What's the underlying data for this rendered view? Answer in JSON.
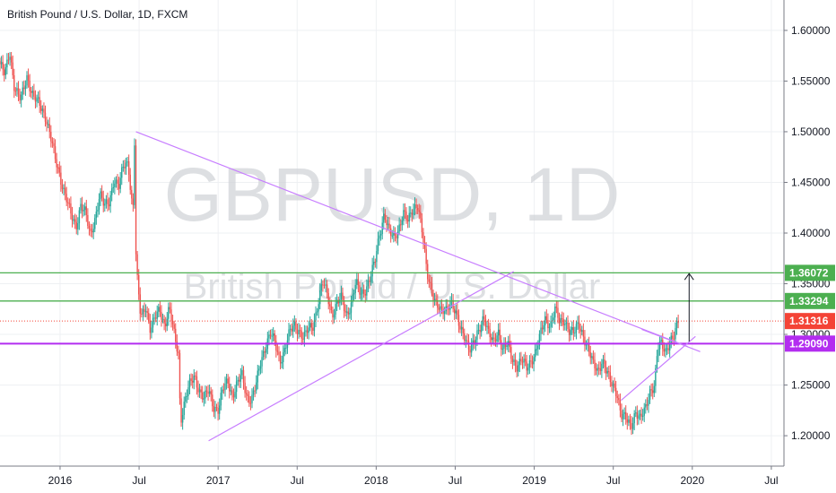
{
  "chart_data": {
    "type": "candlestick",
    "title": "British Pound / U.S. Dollar, 1D, FXCM",
    "watermark": {
      "symbol": "GBPUSD, 1D",
      "name": "British Pound / U.S. Dollar"
    },
    "x_ticks": [
      "2016",
      "Jul",
      "2017",
      "Jul",
      "2018",
      "Jul",
      "2019",
      "Jul",
      "2020",
      "Jul"
    ],
    "y_ticks": [
      "1.60000",
      "1.55000",
      "1.50000",
      "1.45000",
      "1.40000",
      "1.35000",
      "1.30000",
      "1.25000",
      "1.20000"
    ],
    "ylim": [
      1.17,
      1.63
    ],
    "xlim": [
      2015.62,
      2020.58
    ],
    "colors": {
      "up": "#26a69a",
      "down": "#ef5350",
      "trendline": "#c77dff",
      "level_green": "#4caf50",
      "level_purple": "#b32df0",
      "current": "#f44336"
    },
    "price_series": [
      [
        2015.62,
        1.57
      ],
      [
        2015.66,
        1.555
      ],
      [
        2015.69,
        1.58
      ],
      [
        2015.72,
        1.545
      ],
      [
        2015.76,
        1.53
      ],
      [
        2015.8,
        1.555
      ],
      [
        2015.84,
        1.535
      ],
      [
        2015.88,
        1.525
      ],
      [
        2015.92,
        1.515
      ],
      [
        2015.95,
        1.495
      ],
      [
        2015.98,
        1.47
      ],
      [
        2016.02,
        1.45
      ],
      [
        2016.05,
        1.435
      ],
      [
        2016.08,
        1.415
      ],
      [
        2016.11,
        1.405
      ],
      [
        2016.14,
        1.43
      ],
      [
        2016.17,
        1.42
      ],
      [
        2016.2,
        1.395
      ],
      [
        2016.23,
        1.415
      ],
      [
        2016.26,
        1.44
      ],
      [
        2016.29,
        1.425
      ],
      [
        2016.32,
        1.43
      ],
      [
        2016.35,
        1.455
      ],
      [
        2016.38,
        1.445
      ],
      [
        2016.41,
        1.465
      ],
      [
        2016.44,
        1.47
      ],
      [
        2016.47,
        1.42
      ],
      [
        2016.48,
        1.49
      ],
      [
        2016.49,
        1.365
      ],
      [
        2016.52,
        1.315
      ],
      [
        2016.55,
        1.33
      ],
      [
        2016.58,
        1.305
      ],
      [
        2016.61,
        1.315
      ],
      [
        2016.64,
        1.325
      ],
      [
        2016.67,
        1.31
      ],
      [
        2016.7,
        1.325
      ],
      [
        2016.73,
        1.3
      ],
      [
        2016.76,
        1.28
      ],
      [
        2016.77,
        1.215
      ],
      [
        2016.8,
        1.235
      ],
      [
        2016.83,
        1.25
      ],
      [
        2016.86,
        1.26
      ],
      [
        2016.89,
        1.245
      ],
      [
        2016.92,
        1.235
      ],
      [
        2016.95,
        1.245
      ],
      [
        2016.98,
        1.23
      ],
      [
        2017.01,
        1.225
      ],
      [
        2017.04,
        1.245
      ],
      [
        2017.07,
        1.255
      ],
      [
        2017.1,
        1.24
      ],
      [
        2017.13,
        1.25
      ],
      [
        2017.16,
        1.26
      ],
      [
        2017.19,
        1.24
      ],
      [
        2017.22,
        1.235
      ],
      [
        2017.25,
        1.25
      ],
      [
        2017.28,
        1.275
      ],
      [
        2017.31,
        1.29
      ],
      [
        2017.34,
        1.3
      ],
      [
        2017.37,
        1.29
      ],
      [
        2017.4,
        1.275
      ],
      [
        2017.43,
        1.285
      ],
      [
        2017.46,
        1.3
      ],
      [
        2017.49,
        1.31
      ],
      [
        2017.52,
        1.305
      ],
      [
        2017.55,
        1.295
      ],
      [
        2017.58,
        1.305
      ],
      [
        2017.61,
        1.31
      ],
      [
        2017.64,
        1.33
      ],
      [
        2017.67,
        1.35
      ],
      [
        2017.7,
        1.34
      ],
      [
        2017.73,
        1.32
      ],
      [
        2017.76,
        1.33
      ],
      [
        2017.79,
        1.335
      ],
      [
        2017.82,
        1.32
      ],
      [
        2017.85,
        1.33
      ],
      [
        2017.88,
        1.35
      ],
      [
        2017.91,
        1.34
      ],
      [
        2017.94,
        1.345
      ],
      [
        2017.97,
        1.355
      ],
      [
        2018.0,
        1.37
      ],
      [
        2018.03,
        1.4
      ],
      [
        2018.06,
        1.42
      ],
      [
        2018.09,
        1.4
      ],
      [
        2018.12,
        1.395
      ],
      [
        2018.15,
        1.405
      ],
      [
        2018.18,
        1.42
      ],
      [
        2018.21,
        1.41
      ],
      [
        2018.24,
        1.425
      ],
      [
        2018.27,
        1.43
      ],
      [
        2018.3,
        1.4
      ],
      [
        2018.33,
        1.36
      ],
      [
        2018.36,
        1.345
      ],
      [
        2018.39,
        1.33
      ],
      [
        2018.42,
        1.32
      ],
      [
        2018.45,
        1.325
      ],
      [
        2018.48,
        1.335
      ],
      [
        2018.51,
        1.32
      ],
      [
        2018.54,
        1.305
      ],
      [
        2018.57,
        1.3
      ],
      [
        2018.6,
        1.285
      ],
      [
        2018.63,
        1.29
      ],
      [
        2018.66,
        1.305
      ],
      [
        2018.69,
        1.32
      ],
      [
        2018.72,
        1.3
      ],
      [
        2018.75,
        1.29
      ],
      [
        2018.78,
        1.305
      ],
      [
        2018.81,
        1.285
      ],
      [
        2018.84,
        1.29
      ],
      [
        2018.87,
        1.275
      ],
      [
        2018.9,
        1.27
      ],
      [
        2018.93,
        1.275
      ],
      [
        2018.96,
        1.265
      ],
      [
        2018.99,
        1.275
      ],
      [
        2019.02,
        1.285
      ],
      [
        2019.05,
        1.3
      ],
      [
        2019.08,
        1.315
      ],
      [
        2019.11,
        1.31
      ],
      [
        2019.14,
        1.325
      ],
      [
        2019.17,
        1.31
      ],
      [
        2019.2,
        1.315
      ],
      [
        2019.23,
        1.305
      ],
      [
        2019.26,
        1.3
      ],
      [
        2019.29,
        1.31
      ],
      [
        2019.32,
        1.3
      ],
      [
        2019.35,
        1.285
      ],
      [
        2019.38,
        1.27
      ],
      [
        2019.41,
        1.265
      ],
      [
        2019.44,
        1.275
      ],
      [
        2019.47,
        1.26
      ],
      [
        2019.5,
        1.25
      ],
      [
        2019.53,
        1.245
      ],
      [
        2019.56,
        1.22
      ],
      [
        2019.59,
        1.215
      ],
      [
        2019.62,
        1.21
      ],
      [
        2019.65,
        1.225
      ],
      [
        2019.68,
        1.215
      ],
      [
        2019.71,
        1.225
      ],
      [
        2019.74,
        1.245
      ],
      [
        2019.77,
        1.25
      ],
      [
        2019.79,
        1.285
      ],
      [
        2019.81,
        1.29
      ],
      [
        2019.84,
        1.285
      ],
      [
        2019.87,
        1.295
      ],
      [
        2019.89,
        1.295
      ],
      [
        2019.92,
        1.312
      ]
    ],
    "levels": [
      {
        "value": 1.36072,
        "label": "1.36072",
        "color": "#4caf50"
      },
      {
        "value": 1.33294,
        "label": "1.33294",
        "color": "#4caf50"
      },
      {
        "value": 1.2909,
        "label": "1.29090",
        "color": "#b32df0"
      }
    ],
    "current_price": {
      "value": 1.31316,
      "label": "1.31316"
    },
    "trendlines": [
      {
        "from": [
          2016.48,
          1.5
        ],
        "to": [
          2019.97,
          1.288
        ]
      },
      {
        "from": [
          2016.94,
          1.195
        ],
        "to": [
          2018.87,
          1.362
        ]
      },
      {
        "from": [
          2019.55,
          1.235
        ],
        "to": [
          2020.02,
          1.298
        ]
      },
      {
        "from": [
          2019.68,
          1.305
        ],
        "to": [
          2020.05,
          1.283
        ]
      }
    ],
    "projection_arrow": {
      "x": 2019.98,
      "from": 1.293,
      "to": 1.36
    }
  }
}
